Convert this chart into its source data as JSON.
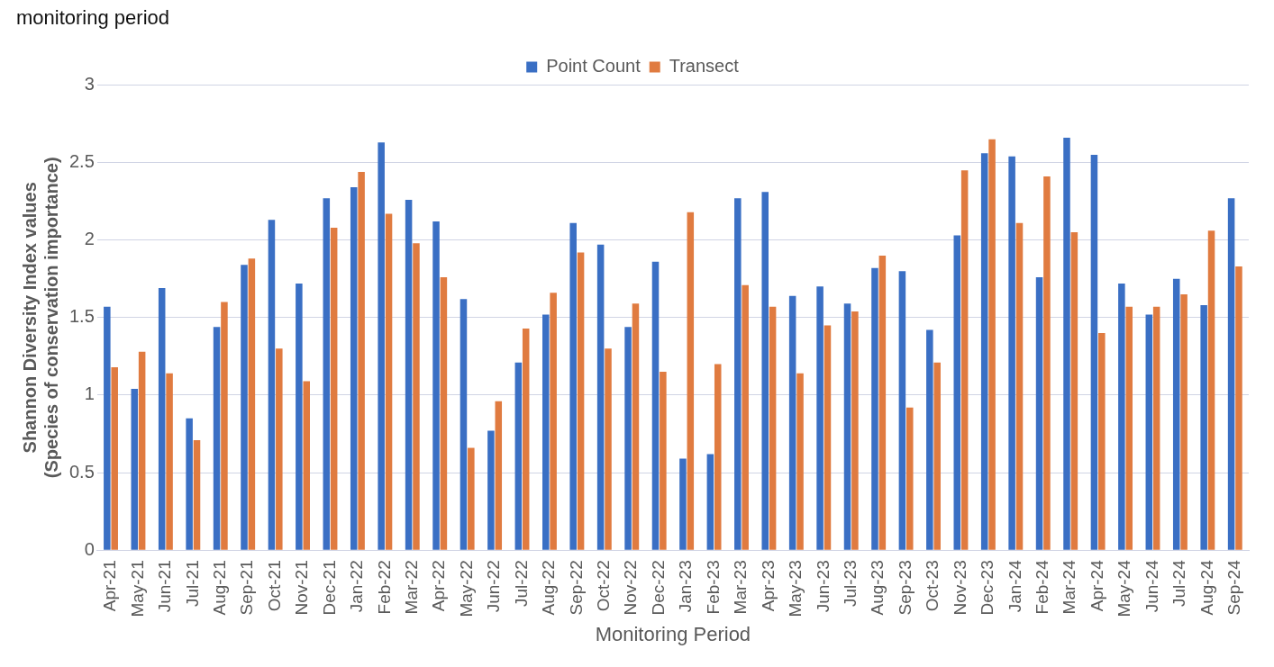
{
  "chart_data": {
    "type": "bar",
    "title": "monitoring period",
    "xlabel": "Monitoring Period",
    "ylabel": "Shannon Diversity Index values (Species of conservation importance)",
    "categories": [
      "Apr-21",
      "May-21",
      "Jun-21",
      "Jul-21",
      "Aug-21",
      "Sep-21",
      "Oct-21",
      "Nov-21",
      "Dec-21",
      "Jan-22",
      "Feb-22",
      "Mar-22",
      "Apr-22",
      "May-22",
      "Jun-22",
      "Jul-22",
      "Aug-22",
      "Sep-22",
      "Oct-22",
      "Nov-22",
      "Dec-22",
      "Jan-23",
      "Feb-23",
      "Mar-23",
      "Apr-23",
      "May-23",
      "Jun-23",
      "Jul-23",
      "Aug-23",
      "Sep-23",
      "Oct-23",
      "Nov-23",
      "Dec-23",
      "Jan-24",
      "Feb-24",
      "Mar-24",
      "Apr-24",
      "May-24",
      "Jun-24",
      "Jul-24",
      "Aug-24",
      "Sep-24"
    ],
    "series": [
      {
        "name": "Point Count",
        "color": "#3a6fc4",
        "values": [
          1.57,
          1.04,
          1.69,
          0.85,
          1.44,
          1.84,
          2.13,
          1.72,
          2.27,
          2.34,
          2.63,
          2.26,
          2.12,
          1.62,
          0.77,
          1.21,
          1.52,
          2.11,
          1.97,
          1.44,
          1.86,
          0.59,
          0.62,
          2.27,
          2.31,
          1.64,
          1.7,
          1.59,
          1.82,
          1.8,
          1.42,
          2.03,
          2.56,
          2.54,
          1.76,
          2.66,
          2.55,
          1.72,
          1.52,
          1.75,
          1.58,
          2.27
        ]
      },
      {
        "name": "Transect",
        "color": "#e07b40",
        "values": [
          1.18,
          1.28,
          1.14,
          0.71,
          1.6,
          1.88,
          1.3,
          1.09,
          2.08,
          2.44,
          2.17,
          1.98,
          1.76,
          0.66,
          0.96,
          1.43,
          1.66,
          1.92,
          1.3,
          1.59,
          1.15,
          2.18,
          1.2,
          1.71,
          1.57,
          1.14,
          1.45,
          1.54,
          1.9,
          0.92,
          1.21,
          2.45,
          2.65,
          2.11,
          2.41,
          2.05,
          1.4,
          1.57,
          1.57,
          1.65,
          2.06,
          1.83
        ]
      }
    ],
    "ylim": [
      0,
      3
    ],
    "yticks": [
      0,
      0.5,
      1,
      1.5,
      2,
      2.5,
      3
    ],
    "grid": "y",
    "legend": "top"
  }
}
